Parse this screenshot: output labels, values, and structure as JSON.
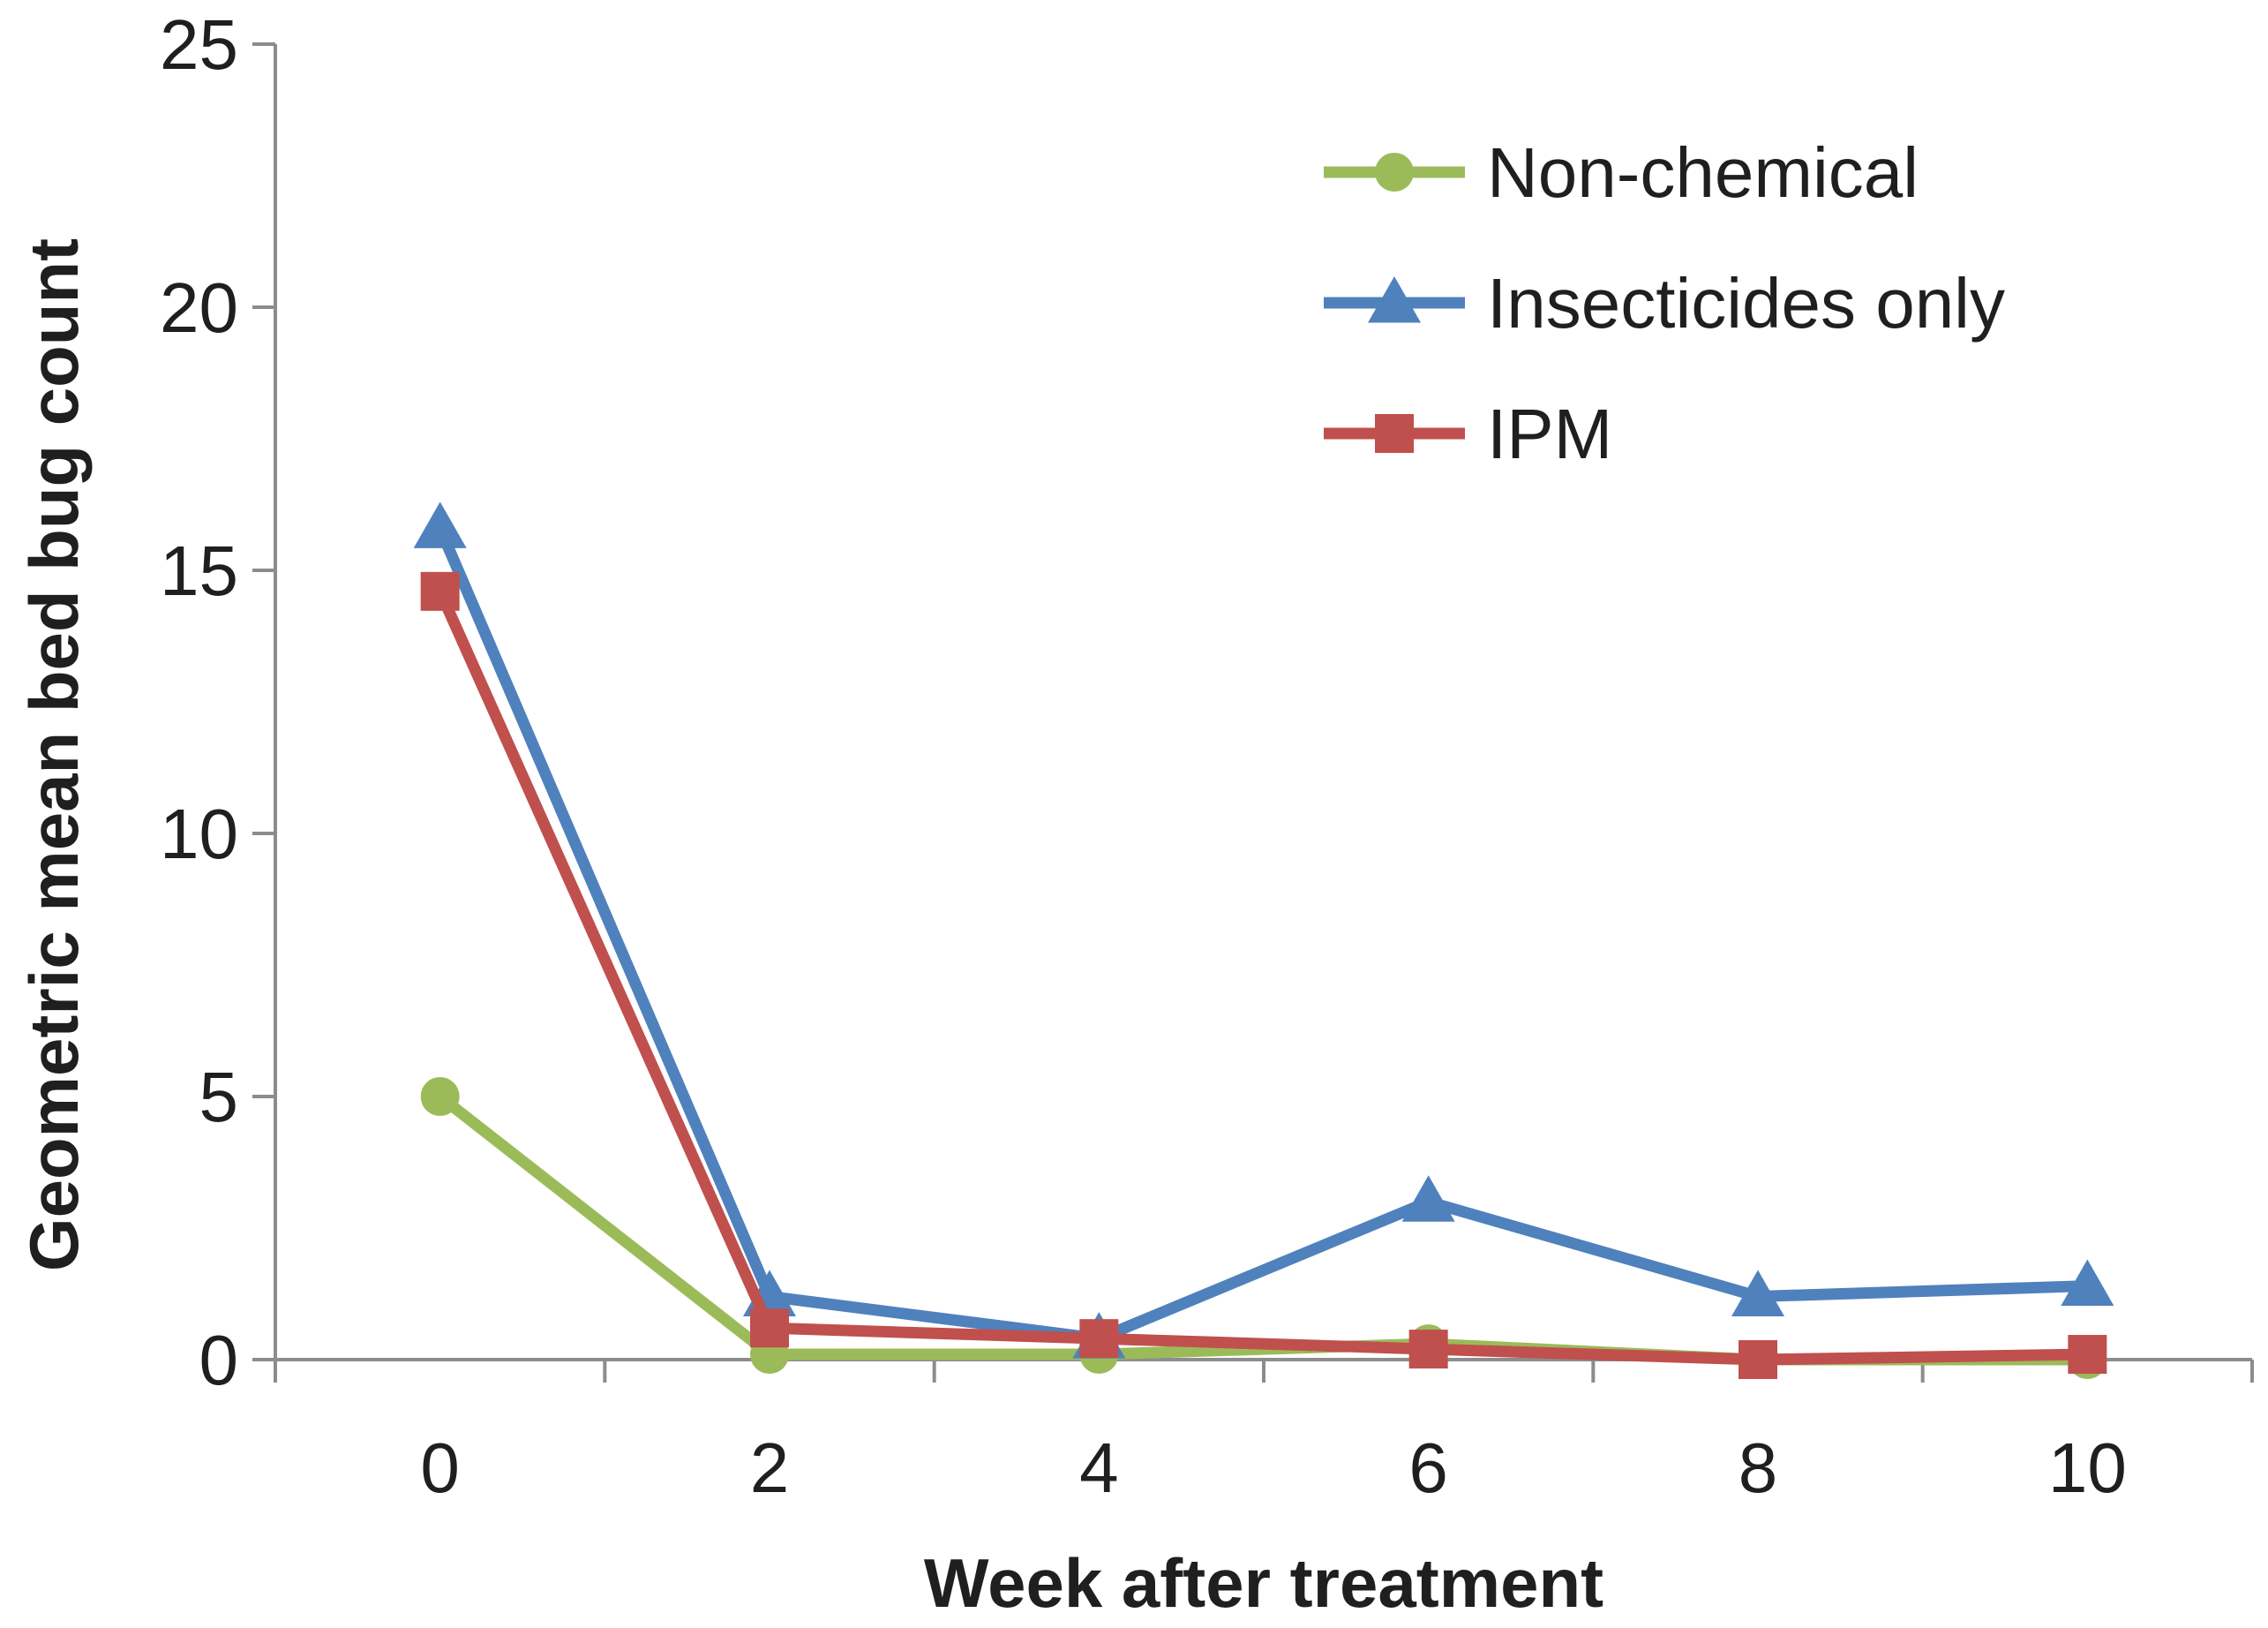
{
  "chart_data": {
    "type": "line",
    "title": "",
    "xlabel": "Week after treatment",
    "ylabel": "Geometric mean bed bug count",
    "categories": [
      "0",
      "2",
      "4",
      "6",
      "8",
      "10"
    ],
    "x": [
      0,
      2,
      4,
      6,
      8,
      10
    ],
    "ylim": [
      0,
      25
    ],
    "yticks": [
      0,
      5,
      10,
      15,
      20,
      25
    ],
    "ytick_labels": [
      "0",
      "5",
      "10",
      "15",
      "20",
      "25"
    ],
    "grid": false,
    "legend_position": "top-right",
    "series": [
      {
        "name": "Non-chemical",
        "color": "#9BBB59",
        "marker": "circle",
        "values": [
          5.0,
          0.1,
          0.1,
          0.3,
          0.0,
          0.0
        ]
      },
      {
        "name": "Insecticides only",
        "color": "#4F81BD",
        "marker": "triangle",
        "values": [
          15.8,
          1.2,
          0.4,
          3.0,
          1.2,
          1.4
        ]
      },
      {
        "name": "IPM",
        "color": "#C0504D",
        "marker": "square",
        "values": [
          14.6,
          0.6,
          0.4,
          0.2,
          0.0,
          0.1
        ]
      }
    ]
  }
}
